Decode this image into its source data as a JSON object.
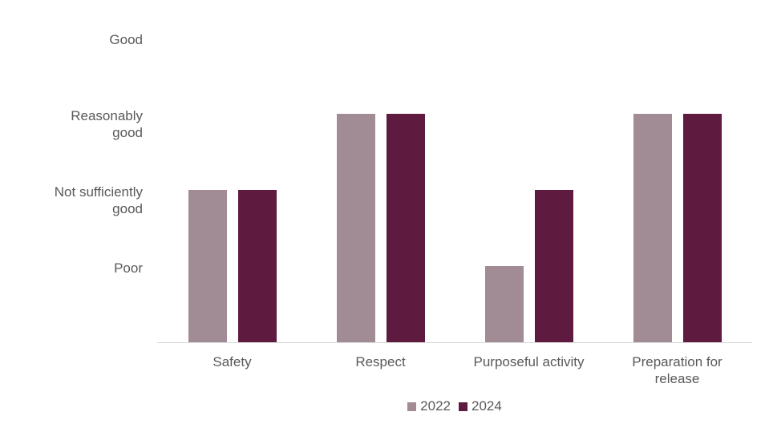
{
  "chart_data": {
    "type": "bar",
    "title": "",
    "categories": [
      "Safety",
      "Respect",
      "Purposeful activity",
      "Preparation for release"
    ],
    "series": [
      {
        "name": "2022",
        "color": "#A18C95",
        "values": [
          2,
          3,
          1,
          3
        ],
        "value_labels": [
          "Not sufficiently good",
          "Reasonably good",
          "Poor",
          "Reasonably good"
        ]
      },
      {
        "name": "2024",
        "color": "#5E1A3F",
        "values": [
          2,
          3,
          2,
          3
        ],
        "value_labels": [
          "Not sufficiently good",
          "Reasonably good",
          "Not sufficiently good",
          "Reasonably good"
        ]
      }
    ],
    "y_axis": {
      "min": 0,
      "max": 4,
      "ticks": [
        {
          "value": 4,
          "label": "Good"
        },
        {
          "value": 3,
          "label": "Reasonably good"
        },
        {
          "value": 2,
          "label": "Not sufficiently good"
        },
        {
          "value": 1,
          "label": "Poor"
        }
      ]
    },
    "legend": {
      "position": "bottom",
      "entries": [
        {
          "label": "2022",
          "color": "#A18C95"
        },
        {
          "label": "2024",
          "color": "#5E1A3F"
        }
      ]
    },
    "grid": false
  },
  "colors": {
    "text": "#595959",
    "axis_line": "#D9D9D9",
    "background": "#FFFFFF"
  }
}
